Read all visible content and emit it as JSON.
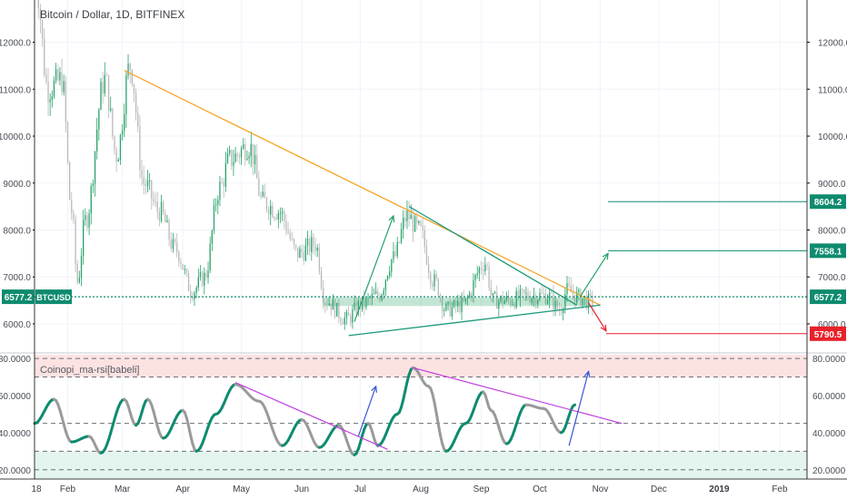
{
  "chart_data": {
    "type": "candlestick",
    "title": "Bitcoin / Dollar, 1D, BITFINEX",
    "symbol_tag": "BTCUSD",
    "price_axis": {
      "min": 5400,
      "max": 12900,
      "ticks": [
        6000,
        7000,
        8000,
        9000,
        10000,
        11000,
        12000
      ],
      "tick_labels": [
        "6000.0",
        "7000.0",
        "8000.0",
        "9000.0",
        "10000.0",
        "11000.0",
        "12000.0"
      ]
    },
    "time_axis": {
      "start": "2018-01-15",
      "end": "2019-02-15",
      "labels": [
        {
          "date": "2018-01-01",
          "text": "18"
        },
        {
          "date": "2018-02-01",
          "text": "Feb"
        },
        {
          "date": "2018-03-01",
          "text": "Mar"
        },
        {
          "date": "2018-04-01",
          "text": "Apr"
        },
        {
          "date": "2018-05-01",
          "text": "May"
        },
        {
          "date": "2018-06-01",
          "text": "Jun"
        },
        {
          "date": "2018-07-01",
          "text": "Jul"
        },
        {
          "date": "2018-08-01",
          "text": "Aug"
        },
        {
          "date": "2018-09-01",
          "text": "Sep"
        },
        {
          "date": "2018-10-01",
          "text": "Oct"
        },
        {
          "date": "2018-11-01",
          "text": "Nov"
        },
        {
          "date": "2018-12-01",
          "text": "Dec"
        },
        {
          "date": "2019-01-01",
          "text": "2019"
        },
        {
          "date": "2019-02-01",
          "text": "Feb"
        }
      ]
    },
    "price_anchors": [
      [
        "2018-01-15",
        13500
      ],
      [
        "2018-01-22",
        11000
      ],
      [
        "2018-01-29",
        11200
      ],
      [
        "2018-02-03",
        8400
      ],
      [
        "2018-02-06",
        6900
      ],
      [
        "2018-02-10",
        8200
      ],
      [
        "2018-02-20",
        11200
      ],
      [
        "2018-02-26",
        9600
      ],
      [
        "2018-03-05",
        11500
      ],
      [
        "2018-03-12",
        9000
      ],
      [
        "2018-03-20",
        8400
      ],
      [
        "2018-03-28",
        7600
      ],
      [
        "2018-04-06",
        6700
      ],
      [
        "2018-04-12",
        7000
      ],
      [
        "2018-04-20",
        8900
      ],
      [
        "2018-04-25",
        9500
      ],
      [
        "2018-05-05",
        9800
      ],
      [
        "2018-05-12",
        8600
      ],
      [
        "2018-05-20",
        8400
      ],
      [
        "2018-05-30",
        7500
      ],
      [
        "2018-06-08",
        7700
      ],
      [
        "2018-06-13",
        6500
      ],
      [
        "2018-06-24",
        6100
      ],
      [
        "2018-07-01",
        6400
      ],
      [
        "2018-07-10",
        6600
      ],
      [
        "2018-07-18",
        7400
      ],
      [
        "2018-07-25",
        8300
      ],
      [
        "2018-07-31",
        8000
      ],
      [
        "2018-08-08",
        6900
      ],
      [
        "2018-08-14",
        6300
      ],
      [
        "2018-08-22",
        6400
      ],
      [
        "2018-09-03",
        7300
      ],
      [
        "2018-09-07",
        6500
      ],
      [
        "2018-09-15",
        6500
      ],
      [
        "2018-09-25",
        6600
      ],
      [
        "2018-10-05",
        6600
      ],
      [
        "2018-10-11",
        6300
      ],
      [
        "2018-10-15",
        6700
      ],
      [
        "2018-10-22",
        6550
      ],
      [
        "2018-10-28",
        6450
      ]
    ],
    "rsi_anchors": [
      [
        "2018-01-15",
        45
      ],
      [
        "2018-01-25",
        58
      ],
      [
        "2018-02-03",
        35
      ],
      [
        "2018-02-12",
        38
      ],
      [
        "2018-02-18",
        29
      ],
      [
        "2018-03-02",
        58
      ],
      [
        "2018-03-08",
        44
      ],
      [
        "2018-03-14",
        58
      ],
      [
        "2018-03-22",
        37
      ],
      [
        "2018-04-01",
        52
      ],
      [
        "2018-04-08",
        30
      ],
      [
        "2018-04-18",
        50
      ],
      [
        "2018-04-28",
        66
      ],
      [
        "2018-05-10",
        57
      ],
      [
        "2018-05-22",
        33
      ],
      [
        "2018-06-01",
        47
      ],
      [
        "2018-06-10",
        32
      ],
      [
        "2018-06-20",
        44
      ],
      [
        "2018-06-28",
        28
      ],
      [
        "2018-07-05",
        45
      ],
      [
        "2018-07-10",
        33
      ],
      [
        "2018-07-20",
        50
      ],
      [
        "2018-07-28",
        75
      ],
      [
        "2018-08-05",
        65
      ],
      [
        "2018-08-14",
        30
      ],
      [
        "2018-08-24",
        45
      ],
      [
        "2018-09-02",
        62
      ],
      [
        "2018-09-06",
        52
      ],
      [
        "2018-09-14",
        34
      ],
      [
        "2018-09-24",
        55
      ],
      [
        "2018-10-03",
        53
      ],
      [
        "2018-10-12",
        40
      ],
      [
        "2018-10-19",
        55
      ]
    ],
    "horizontal_levels": [
      {
        "price": 8604.2,
        "label": "8604.2",
        "color": "#0f8b6f",
        "from": "2018-11-05"
      },
      {
        "price": 7558.1,
        "label": "7558.1",
        "color": "#0f8b6f",
        "from": "2018-11-05"
      },
      {
        "price": 6577.2,
        "label": "6577.2",
        "color": "#0f8b6f",
        "from": "2018-01-15",
        "dotted": true
      },
      {
        "price": 5790.5,
        "label": "5790.5",
        "color": "#e8212a",
        "from": "2018-11-04"
      }
    ],
    "trendlines": [
      {
        "name": "resistance",
        "color": "#f5a623",
        "points": [
          [
            "2018-03-02",
            11400
          ],
          [
            "2018-11-01",
            6400
          ]
        ]
      },
      {
        "name": "triangle-top",
        "color": "#1c9a7a",
        "points": [
          [
            "2018-07-26",
            8500
          ],
          [
            "2018-10-20",
            6400
          ]
        ]
      },
      {
        "name": "triangle-bottom",
        "color": "#1c9a7a",
        "points": [
          [
            "2018-06-25",
            5750
          ],
          [
            "2018-11-01",
            6400
          ]
        ]
      }
    ],
    "arrows": [
      {
        "color": "#26a269",
        "points": [
          [
            "2018-06-28",
            6050
          ],
          [
            "2018-07-18",
            8300
          ]
        ]
      },
      {
        "color": "#26a269",
        "points": [
          [
            "2018-10-22",
            6600
          ],
          [
            "2018-11-05",
            7500
          ]
        ]
      },
      {
        "color": "#e8212a",
        "points": [
          [
            "2018-10-26",
            6450
          ],
          [
            "2018-11-04",
            5850
          ]
        ]
      }
    ],
    "zone": {
      "from": "2018-06-12",
      "to": "2018-10-26",
      "low": 6380,
      "high": 6560
    },
    "indicator": {
      "name": "Coinopi_ma-rsi[babeli]",
      "min": 15,
      "max": 82,
      "ticks": [
        20,
        40,
        60,
        80
      ],
      "tick_labels": [
        "20.0000",
        "40.0000",
        "60.0000",
        "80.0000"
      ],
      "dashed_levels": [
        80,
        70,
        45,
        30,
        20
      ],
      "overbought": [
        70,
        82
      ],
      "oversold": [
        15,
        30
      ],
      "trendlines": [
        {
          "color": "#c03fe0",
          "points": [
            [
              "2018-04-28",
              67
            ],
            [
              "2018-07-15",
              31
            ]
          ]
        },
        {
          "color": "#c03fe0",
          "points": [
            [
              "2018-07-28",
              75
            ],
            [
              "2018-11-12",
              45
            ]
          ]
        }
      ],
      "arrows": [
        {
          "color": "#3a56d4",
          "points": [
            [
              "2018-06-30",
              38
            ],
            [
              "2018-07-09",
              65
            ]
          ]
        },
        {
          "color": "#3a56d4",
          "points": [
            [
              "2018-10-16",
              33
            ],
            [
              "2018-10-26",
              73
            ]
          ]
        }
      ]
    },
    "colors": {
      "up": "#26a269",
      "down": "#b8b8b8",
      "rsi_up": "#0f8b6f",
      "rsi_down": "#9a9a9a",
      "grid": "#f0f3fa",
      "axis": "#000000",
      "ob_zone": "#fde2e2",
      "os_zone": "#e3f5ee"
    }
  }
}
